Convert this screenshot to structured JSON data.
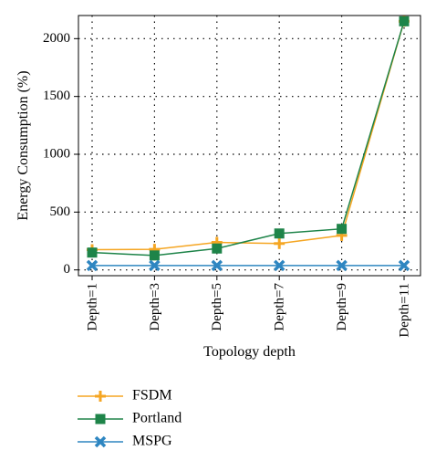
{
  "chart_data": {
    "type": "line",
    "title": "",
    "xlabel": "Topology depth",
    "ylabel": "Energy Consumption (%)",
    "categories": [
      "Depth=1",
      "Depth=3",
      "Depth=5",
      "Depth=7",
      "Depth=9",
      "Depth=11"
    ],
    "ylim": [
      -50,
      2200
    ],
    "yticks": [
      0,
      500,
      1000,
      1500,
      2000
    ],
    "grid": true,
    "legend_position": "below",
    "series": [
      {
        "name": "FSDM",
        "color": "#f5a623",
        "marker": "plus",
        "values": [
          175,
          178,
          238,
          228,
          298,
          2150
        ]
      },
      {
        "name": "Portland",
        "color": "#1e8449",
        "marker": "square",
        "values": [
          150,
          125,
          185,
          315,
          355,
          2150
        ]
      },
      {
        "name": "MSPG",
        "color": "#2e86c1",
        "marker": "x",
        "values": [
          38,
          38,
          38,
          38,
          38,
          38
        ]
      }
    ]
  }
}
